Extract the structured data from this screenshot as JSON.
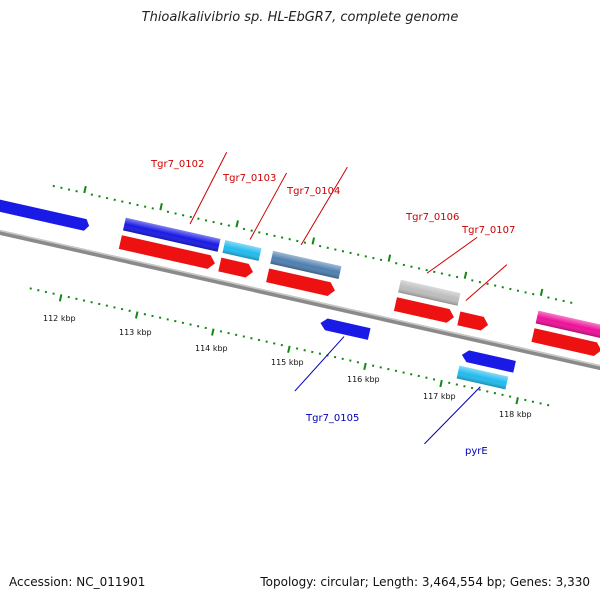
{
  "title": "Thioalkalivibrio sp. HL-EbGR7, complete genome",
  "footer": {
    "accession": "Accession: NC_011901",
    "summary": "Topology: circular; Length: 3,464,554 bp; Genes: 3,330"
  },
  "scale_ticks": [
    "112 kbp",
    "113 kbp",
    "114 kbp",
    "115 kbp",
    "116 kbp",
    "117 kbp",
    "118 kbp"
  ],
  "gene_labels": {
    "forward": [
      "Tgr7_0102",
      "Tgr7_0103",
      "Tgr7_0104",
      "Tgr7_0106",
      "Tgr7_0107"
    ],
    "reverse": [
      "Tgr7_0105",
      "pyrE"
    ]
  },
  "colors": {
    "backbone": "#8a8a8a",
    "tick": "#118811",
    "cds": "#ee1111",
    "gene_blue": "#1a1ae6",
    "gene_cyan": "#22bbee",
    "gene_steel": "#4f7fb0",
    "gene_gray": "#bdbdbd",
    "gene_magenta": "#ee1199",
    "label_forward": "#cc0000",
    "label_reverse": "#0000bb"
  }
}
